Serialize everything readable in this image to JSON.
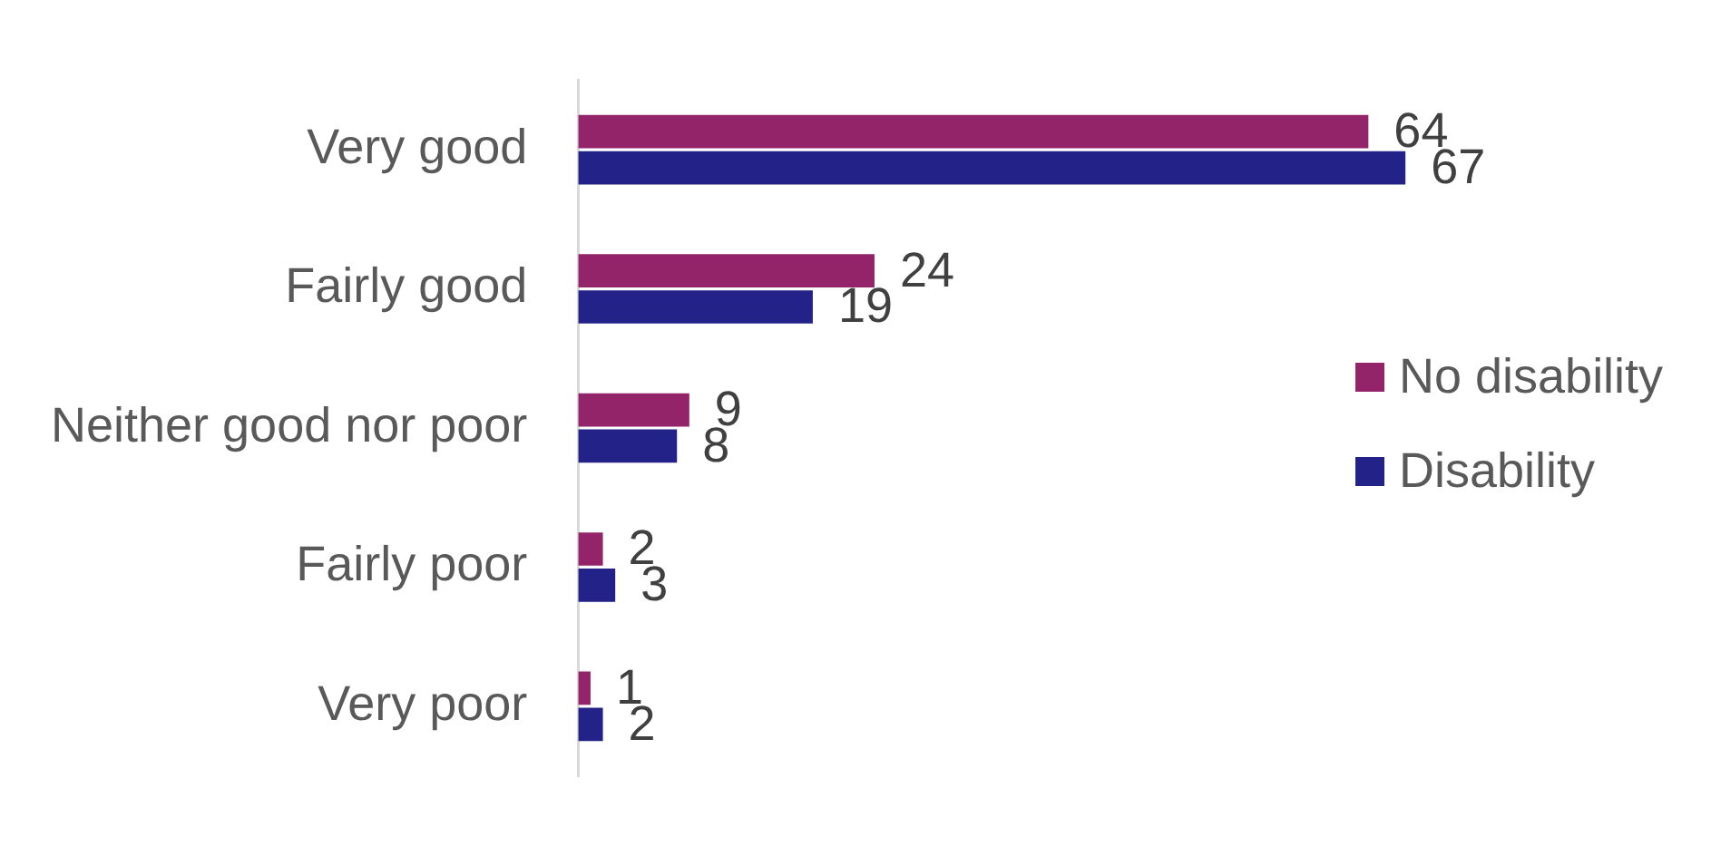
{
  "chart_data": {
    "type": "bar",
    "orientation": "horizontal",
    "categories": [
      "Very good",
      "Fairly good",
      "Neither good nor poor",
      "Fairly poor",
      "Very poor"
    ],
    "series": [
      {
        "name": "No disability",
        "color": "#93246a",
        "values": [
          64,
          24,
          9,
          2,
          1
        ]
      },
      {
        "name": "Disability",
        "color": "#222288",
        "values": [
          67,
          19,
          8,
          3,
          2
        ]
      }
    ],
    "tick_labels": "y",
    "data_labels": true,
    "grid": false,
    "legend": "right"
  }
}
